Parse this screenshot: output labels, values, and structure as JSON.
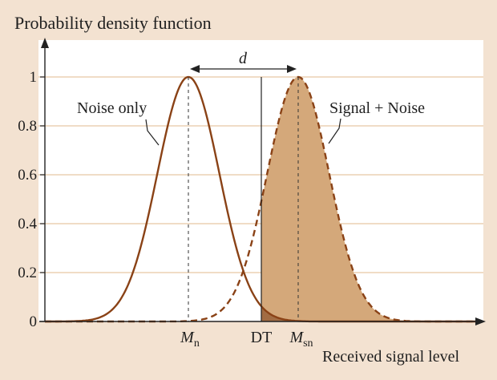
{
  "chart_data": {
    "type": "line",
    "title": "Probability density function",
    "xlabel": "Received signal level",
    "ylabel": "",
    "ylim": [
      0,
      1
    ],
    "yticks": [
      "0",
      "0.2",
      "0.4",
      "0.6",
      "0.8",
      "1"
    ],
    "x_markers": {
      "mn": {
        "base": "M",
        "sub": "n",
        "value": 0
      },
      "dt": {
        "label": "DT",
        "value": 1.5
      },
      "msn": {
        "base": "M",
        "sub": "sn",
        "value": 2.2
      }
    },
    "distance_label": "d",
    "series": [
      {
        "name": "Noise only",
        "mean": 0,
        "sigma": 0.62,
        "x": [
          -3,
          -2.5,
          -2,
          -1.5,
          -1,
          -0.5,
          0,
          0.5,
          1,
          1.5,
          2,
          2.5,
          3
        ],
        "values": [
          0.0,
          0.0,
          0.006,
          0.053,
          0.27,
          0.72,
          1.0,
          0.72,
          0.27,
          0.053,
          0.006,
          0.0,
          0.0
        ],
        "style": "solid"
      },
      {
        "name": "Signal + Noise",
        "mean": 2.2,
        "sigma": 0.62,
        "x": [
          -0.8,
          -0.3,
          0.2,
          0.7,
          1.2,
          1.7,
          2.2,
          2.7,
          3.2,
          3.7,
          4.2,
          4.7,
          5.2
        ],
        "values": [
          0.0,
          0.0,
          0.006,
          0.053,
          0.27,
          0.72,
          1.0,
          0.72,
          0.27,
          0.053,
          0.006,
          0.0,
          0.0
        ],
        "style": "dashed"
      }
    ]
  },
  "colors": {
    "background": "#f3e2d1",
    "plot_background": "#ffffff",
    "grid": "#e8c8a4",
    "curve": "#8a4216",
    "signal_fill": "#d4a87a",
    "overlap_fill": "#a26c43",
    "axis": "#222222"
  }
}
